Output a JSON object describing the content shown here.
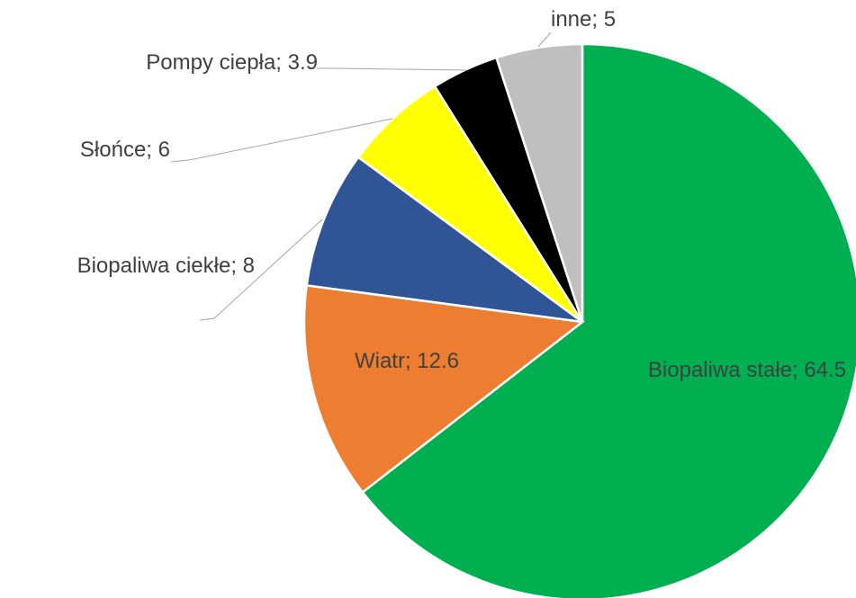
{
  "chart_data": {
    "type": "pie",
    "values": [
      64.5,
      12.6,
      8,
      6,
      3.9,
      5
    ],
    "value_labels": [
      "Biopaliwa stałe; 64.5",
      "Wiatr; 12.6",
      "Biopaliwa ciekłe; 8",
      "Słońce; 6",
      "Pompy ciepła; 3.9",
      "inne; 5"
    ],
    "colors": [
      "#00b050",
      "#ed7d31",
      "#2f5597",
      "#ffff00",
      "#000000",
      "#bfbfbf"
    ]
  }
}
